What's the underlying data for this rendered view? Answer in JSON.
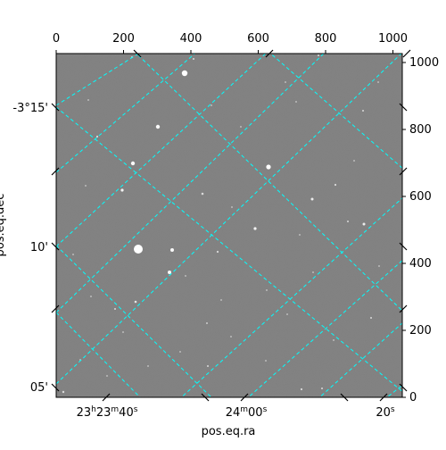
{
  "image": {
    "kind": "astronomical-frame",
    "background_color": "#7d7d7d",
    "grid_color": "#00ffff"
  },
  "axes": {
    "top": {
      "ticks": [
        "0",
        "200",
        "400",
        "600",
        "800",
        "1000"
      ]
    },
    "right": {
      "ticks": [
        "0",
        "200",
        "400",
        "600",
        "800",
        "1000"
      ]
    },
    "bottom": {
      "label": "pos.eq.ra",
      "ticks": [
        {
          "h": "23",
          "m": "23",
          "s": "40"
        },
        {
          "m": "24",
          "s": "00"
        },
        {
          "s": "20"
        }
      ]
    },
    "left": {
      "label": "pos.eq.dec",
      "ticks": [
        "-3°15'",
        "10'",
        "05'"
      ]
    }
  }
}
